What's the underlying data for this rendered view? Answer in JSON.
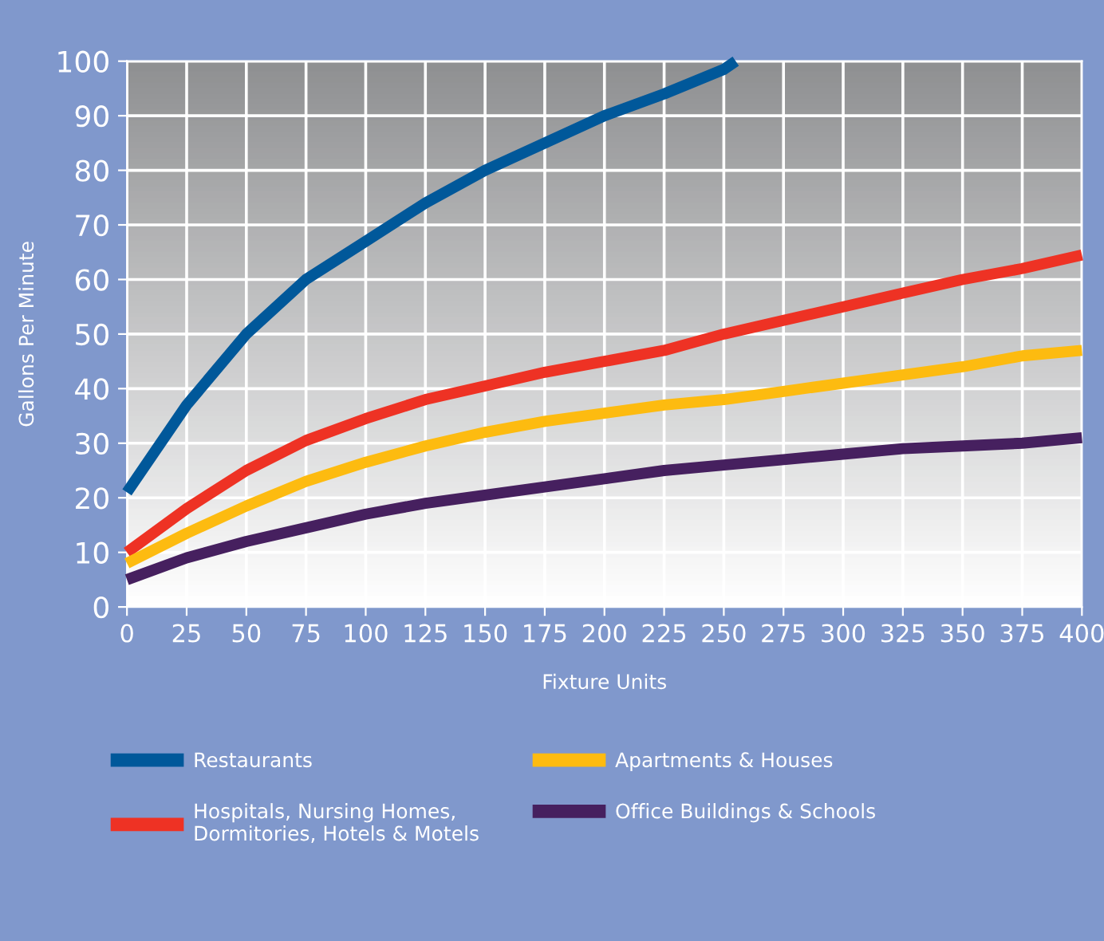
{
  "chart_data": {
    "type": "line",
    "xlabel": "Fixture Units",
    "ylabel": "Gallons Per Minute",
    "xlim": [
      0,
      400
    ],
    "ylim": [
      0,
      100
    ],
    "xticks": [
      0,
      25,
      50,
      75,
      100,
      125,
      150,
      175,
      200,
      225,
      250,
      275,
      300,
      325,
      350,
      375,
      400
    ],
    "yticks": [
      0,
      10,
      20,
      30,
      40,
      50,
      60,
      70,
      80,
      90,
      100
    ],
    "grid": true,
    "legend": "bottom",
    "marker": "none",
    "line_style": "solid",
    "series": [
      {
        "name": "Restaurants",
        "color": "#00589a",
        "x": [
          0,
          25,
          50,
          75,
          100,
          125,
          150,
          175,
          200,
          225,
          250,
          255
        ],
        "values": [
          21,
          37,
          50,
          60,
          67,
          74,
          80,
          85,
          90,
          94,
          98.5,
          100
        ]
      },
      {
        "name": "Hospitals, Nursing Homes,\nDormitories, Hotels & Motels",
        "color": "#ee3224",
        "x": [
          0,
          25,
          50,
          75,
          100,
          125,
          150,
          175,
          200,
          225,
          250,
          275,
          300,
          325,
          350,
          375,
          400
        ],
        "values": [
          10,
          18,
          25,
          30.5,
          34.5,
          38,
          40.5,
          43,
          45,
          47,
          50,
          52.5,
          55,
          57.5,
          60,
          62,
          64.5
        ]
      },
      {
        "name": "Apartments & Houses",
        "color": "#fdbb10",
        "x": [
          0,
          25,
          50,
          75,
          100,
          125,
          150,
          175,
          200,
          225,
          250,
          275,
          300,
          325,
          350,
          375,
          400
        ],
        "values": [
          8,
          13.5,
          18.5,
          23,
          26.5,
          29.5,
          32,
          34,
          35.5,
          37,
          38,
          39.5,
          41,
          42.5,
          44,
          46,
          47
        ]
      },
      {
        "name": "Office Buildings & Schools",
        "color": "#46205f",
        "x": [
          0,
          25,
          50,
          75,
          100,
          125,
          150,
          175,
          200,
          225,
          250,
          275,
          300,
          325,
          350,
          375,
          400
        ],
        "values": [
          5,
          9,
          12,
          14.5,
          17,
          19,
          20.5,
          22,
          23.5,
          25,
          26,
          27,
          28,
          29,
          29.5,
          30,
          31
        ]
      }
    ]
  }
}
